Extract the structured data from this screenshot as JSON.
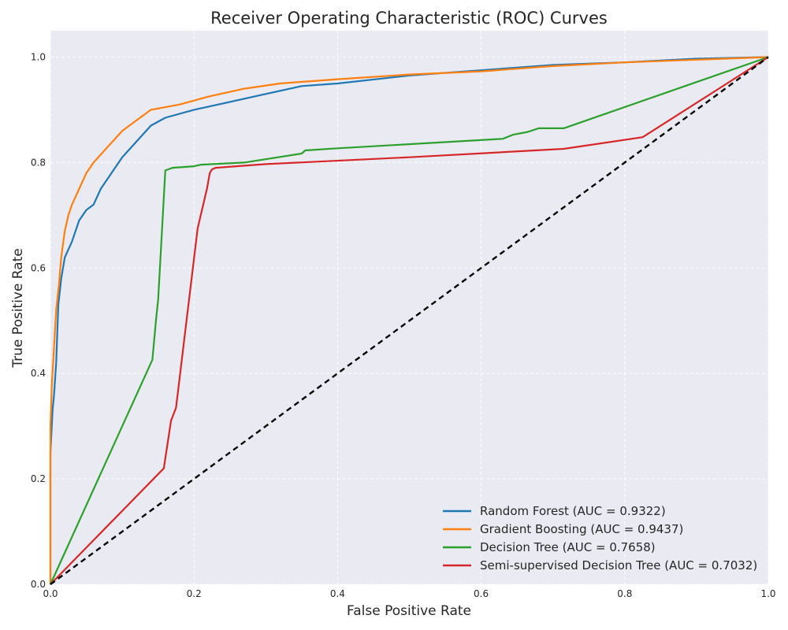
{
  "chart_data": {
    "type": "line",
    "title": "Receiver Operating Characteristic (ROC) Curves",
    "xlabel": "False Positive Rate",
    "ylabel": "True Positive Rate",
    "xlim": [
      0.0,
      1.0
    ],
    "ylim": [
      0.0,
      1.05
    ],
    "x_ticks": [
      "0.0",
      "0.2",
      "0.4",
      "0.6",
      "0.8",
      "1.0"
    ],
    "y_ticks": [
      "0.0",
      "0.2",
      "0.4",
      "0.6",
      "0.8",
      "1.0"
    ],
    "grid": true,
    "legend_position": "bottom-right",
    "background_color": "#eaeaf2",
    "series": [
      {
        "name": "Random Forest (AUC = 0.9322)",
        "color": "#1f77b4",
        "points": [
          [
            0,
            0
          ],
          [
            0,
            0.25
          ],
          [
            0.003,
            0.33
          ],
          [
            0.005,
            0.36
          ],
          [
            0.008,
            0.42
          ],
          [
            0.011,
            0.53
          ],
          [
            0.015,
            0.58
          ],
          [
            0.02,
            0.62
          ],
          [
            0.03,
            0.65
          ],
          [
            0.04,
            0.69
          ],
          [
            0.05,
            0.71
          ],
          [
            0.06,
            0.72
          ],
          [
            0.07,
            0.75
          ],
          [
            0.08,
            0.77
          ],
          [
            0.09,
            0.79
          ],
          [
            0.1,
            0.81
          ],
          [
            0.12,
            0.84
          ],
          [
            0.14,
            0.87
          ],
          [
            0.16,
            0.885
          ],
          [
            0.2,
            0.9
          ],
          [
            0.25,
            0.915
          ],
          [
            0.3,
            0.93
          ],
          [
            0.35,
            0.945
          ],
          [
            0.4,
            0.95
          ],
          [
            0.5,
            0.965
          ],
          [
            0.6,
            0.975
          ],
          [
            0.7,
            0.985
          ],
          [
            0.8,
            0.99
          ],
          [
            0.9,
            0.997
          ],
          [
            1,
            1
          ]
        ]
      },
      {
        "name": "Gradient Boosting (AUC = 0.9437)",
        "color": "#ff7f0e",
        "points": [
          [
            0,
            0
          ],
          [
            0,
            0.3
          ],
          [
            0.002,
            0.38
          ],
          [
            0.005,
            0.45
          ],
          [
            0.008,
            0.52
          ],
          [
            0.012,
            0.57
          ],
          [
            0.015,
            0.62
          ],
          [
            0.02,
            0.67
          ],
          [
            0.025,
            0.7
          ],
          [
            0.03,
            0.72
          ],
          [
            0.04,
            0.75
          ],
          [
            0.05,
            0.78
          ],
          [
            0.06,
            0.8
          ],
          [
            0.08,
            0.83
          ],
          [
            0.1,
            0.86
          ],
          [
            0.12,
            0.88
          ],
          [
            0.14,
            0.9
          ],
          [
            0.18,
            0.91
          ],
          [
            0.22,
            0.925
          ],
          [
            0.27,
            0.94
          ],
          [
            0.32,
            0.95
          ],
          [
            0.4,
            0.958
          ],
          [
            0.5,
            0.967
          ],
          [
            0.6,
            0.973
          ],
          [
            0.7,
            0.983
          ],
          [
            0.8,
            0.99
          ],
          [
            0.9,
            0.995
          ],
          [
            1,
            1
          ]
        ]
      },
      {
        "name": "Decision Tree (AUC = 0.7658)",
        "color": "#2ca02c",
        "points": [
          [
            0,
            0
          ],
          [
            0.142,
            0.426
          ],
          [
            0.147,
            0.5
          ],
          [
            0.15,
            0.54
          ],
          [
            0.16,
            0.785
          ],
          [
            0.17,
            0.79
          ],
          [
            0.2,
            0.793
          ],
          [
            0.21,
            0.796
          ],
          [
            0.27,
            0.8
          ],
          [
            0.35,
            0.817
          ],
          [
            0.355,
            0.823
          ],
          [
            0.4,
            0.827
          ],
          [
            0.63,
            0.845
          ],
          [
            0.645,
            0.853
          ],
          [
            0.665,
            0.858
          ],
          [
            0.68,
            0.865
          ],
          [
            0.715,
            0.865
          ],
          [
            1,
            1
          ]
        ]
      },
      {
        "name": "Semi-supervised Decision Tree (AUC = 0.7032)",
        "color": "#d62728",
        "points": [
          [
            0,
            0
          ],
          [
            0.158,
            0.22
          ],
          [
            0.168,
            0.31
          ],
          [
            0.175,
            0.335
          ],
          [
            0.205,
            0.675
          ],
          [
            0.218,
            0.75
          ],
          [
            0.222,
            0.78
          ],
          [
            0.225,
            0.787
          ],
          [
            0.23,
            0.79
          ],
          [
            0.3,
            0.797
          ],
          [
            0.5,
            0.81
          ],
          [
            0.715,
            0.826
          ],
          [
            0.825,
            0.848
          ],
          [
            1,
            1
          ]
        ]
      },
      {
        "name": "",
        "color": "#000000",
        "dashed": true,
        "points": [
          [
            0,
            0
          ],
          [
            1,
            1
          ]
        ]
      }
    ]
  }
}
